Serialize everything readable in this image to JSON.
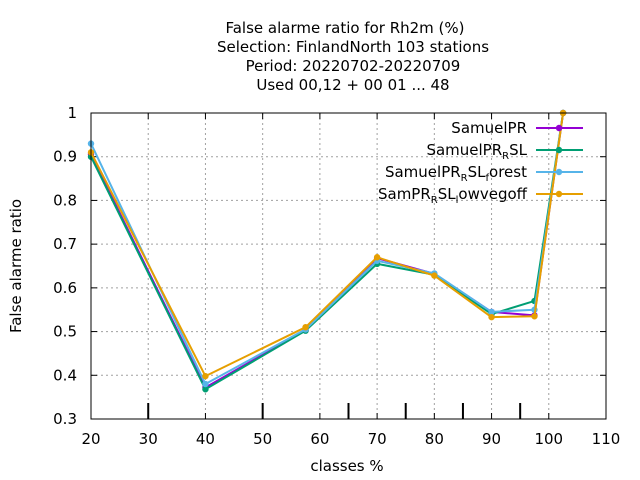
{
  "chart_data": {
    "type": "line",
    "title_lines": [
      "False alarme ratio  for Rh2m (%)",
      "Selection: FinlandNorth    103 stations",
      "Period: 20220702-20220709",
      "Used  00,12  + 00 01 ... 48"
    ],
    "xlabel": "classes %",
    "ylabel": "False alarme ratio",
    "xlim": [
      20,
      110
    ],
    "ylim": [
      0.3,
      1.0
    ],
    "xticks": [
      "20",
      "30",
      "40",
      "50",
      "60",
      "70",
      "80",
      "90",
      "100",
      "110"
    ],
    "yticks": [
      "0.3",
      "0.4",
      "0.5",
      "0.6",
      "0.7",
      "0.8",
      "0.9",
      "1"
    ],
    "extra_x_tickmarks": [
      30,
      50,
      65,
      75,
      85,
      95
    ],
    "grid": true,
    "legend_position": "top-right",
    "series": [
      {
        "legend": {
          "base": "SamuelPR",
          "sub": "",
          "suffix": "",
          "sub2": "",
          "suffix2": ""
        },
        "color": "#9400D3",
        "x": [
          20,
          40,
          57.5,
          70,
          80,
          90,
          97.5,
          102.5
        ],
        "y": [
          0.905,
          0.372,
          0.503,
          0.668,
          0.632,
          0.545,
          0.537,
          1.0
        ]
      },
      {
        "legend": {
          "base": "SamuelPR",
          "sub": "R",
          "suffix": "SL",
          "sub2": "",
          "suffix2": ""
        },
        "color": "#009E73",
        "x": [
          20,
          40,
          57.5,
          70,
          80,
          90,
          97.5,
          102.5
        ],
        "y": [
          0.9,
          0.368,
          0.502,
          0.655,
          0.63,
          0.54,
          0.57,
          1.0
        ]
      },
      {
        "legend": {
          "base": "SamuelPR",
          "sub": "R",
          "suffix": "SL",
          "sub2": "f",
          "suffix2": "orest"
        },
        "color": "#56B4E9",
        "x": [
          20,
          40,
          57.5,
          70,
          80,
          90,
          97.5,
          102.5
        ],
        "y": [
          0.93,
          0.38,
          0.505,
          0.662,
          0.633,
          0.545,
          0.55,
          1.0
        ]
      },
      {
        "legend": {
          "base": "SamPR",
          "sub": "R",
          "suffix": "SL",
          "sub2": "l",
          "suffix2": "owvegoff"
        },
        "color": "#E69F00",
        "x": [
          20,
          40,
          57.5,
          70,
          80,
          90,
          97.5,
          102.5
        ],
        "y": [
          0.91,
          0.398,
          0.51,
          0.67,
          0.628,
          0.533,
          0.535,
          1.0
        ]
      }
    ]
  }
}
